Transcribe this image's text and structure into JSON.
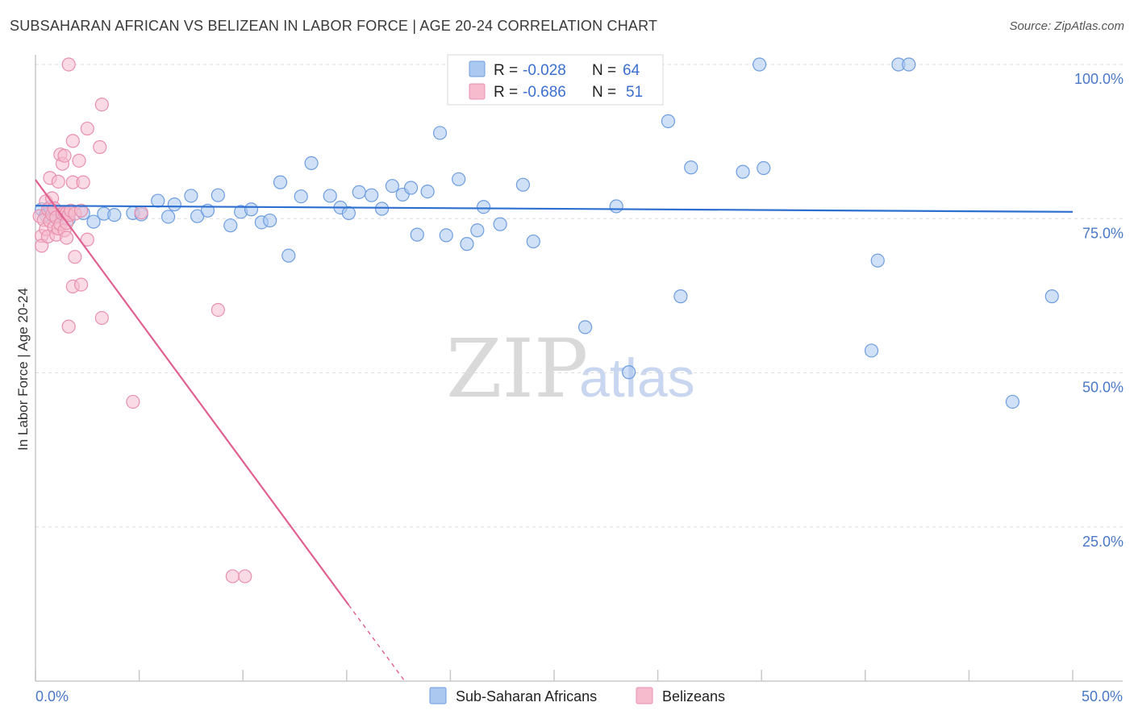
{
  "title": "SUBSAHARAN AFRICAN VS BELIZEAN IN LABOR FORCE | AGE 20-24 CORRELATION CHART",
  "source": "Source: ZipAtlas.com",
  "watermark": {
    "zip": "ZIP",
    "atlas": "atlas"
  },
  "colors": {
    "blue_fill": "#aac8f0",
    "blue_stroke": "#6d9de0",
    "blue_line": "#2d6fd0",
    "pink_fill": "#f6bccd",
    "pink_stroke": "#e890ad",
    "pink_line": "#e0608f",
    "axis_text": "#4a78c8",
    "grid": "#dddddd"
  },
  "legend": {
    "rows": [
      {
        "r_label": "R = ",
        "r_value": "-0.028",
        "n_label": "N = ",
        "n_value": "64"
      },
      {
        "r_label": "R = ",
        "r_value": "-0.686",
        "n_label": "N = ",
        "n_value": "51"
      }
    ]
  },
  "chart_data": {
    "type": "scatter",
    "title": "SUBSAHARAN AFRICAN VS BELIZEAN IN LABOR FORCE | AGE 20-24 CORRELATION CHART",
    "xlabel": "",
    "ylabel": "In Labor Force | Age 20-24",
    "xlim": [
      0,
      50
    ],
    "ylim": [
      0,
      102
    ],
    "x_tick_labels": [
      "0.0%",
      "50.0%"
    ],
    "y_ticks": [
      25,
      50,
      75,
      100
    ],
    "y_tick_labels": [
      "25.0%",
      "50.0%",
      "75.0%",
      "100.0%"
    ],
    "grid": true,
    "legend_position": "top-center",
    "series": [
      {
        "name": "Sub-Saharan Africans",
        "color": "blue",
        "R": -0.028,
        "N": 64,
        "trend": {
          "x": [
            0,
            50
          ],
          "y": [
            77.1,
            76.1
          ]
        },
        "points": [
          [
            0.3,
            76.5
          ],
          [
            0.5,
            75.6
          ],
          [
            0.7,
            76.8
          ],
          [
            0.9,
            75.3
          ],
          [
            1.1,
            76.2
          ],
          [
            1.3,
            75.8
          ],
          [
            1.6,
            74.9
          ],
          [
            2.3,
            75.9
          ],
          [
            2.8,
            74.5
          ],
          [
            3.3,
            75.8
          ],
          [
            3.8,
            75.6
          ],
          [
            4.7,
            75.9
          ],
          [
            5.1,
            75.7
          ],
          [
            5.9,
            77.9
          ],
          [
            6.4,
            75.3
          ],
          [
            6.7,
            77.3
          ],
          [
            7.5,
            78.7
          ],
          [
            7.8,
            75.4
          ],
          [
            8.3,
            76.3
          ],
          [
            8.8,
            78.8
          ],
          [
            9.4,
            73.9
          ],
          [
            9.9,
            76.1
          ],
          [
            10.4,
            76.5
          ],
          [
            10.9,
            74.4
          ],
          [
            11.3,
            74.7
          ],
          [
            11.8,
            80.9
          ],
          [
            12.2,
            69.0
          ],
          [
            12.8,
            78.6
          ],
          [
            13.3,
            84.0
          ],
          [
            14.2,
            78.7
          ],
          [
            14.7,
            76.8
          ],
          [
            15.1,
            75.9
          ],
          [
            15.6,
            79.3
          ],
          [
            16.2,
            78.8
          ],
          [
            16.7,
            76.6
          ],
          [
            17.2,
            80.3
          ],
          [
            17.7,
            78.9
          ],
          [
            18.1,
            80.0
          ],
          [
            18.4,
            72.4
          ],
          [
            18.9,
            79.4
          ],
          [
            19.5,
            88.9
          ],
          [
            19.8,
            72.3
          ],
          [
            20.4,
            81.4
          ],
          [
            20.8,
            70.9
          ],
          [
            21.3,
            73.1
          ],
          [
            21.6,
            76.9
          ],
          [
            22.4,
            74.1
          ],
          [
            23.5,
            80.5
          ],
          [
            24.0,
            71.3
          ],
          [
            26.5,
            57.4
          ],
          [
            28.0,
            77.0
          ],
          [
            28.6,
            50.1
          ],
          [
            30.5,
            90.8
          ],
          [
            31.1,
            62.4
          ],
          [
            31.6,
            83.3
          ],
          [
            34.1,
            82.6
          ],
          [
            34.9,
            100.0
          ],
          [
            35.1,
            83.2
          ],
          [
            40.3,
            53.6
          ],
          [
            40.6,
            68.2
          ],
          [
            41.6,
            100.0
          ],
          [
            42.1,
            100.0
          ],
          [
            47.1,
            45.3
          ],
          [
            49.0,
            62.4
          ]
        ]
      },
      {
        "name": "Belizeans",
        "color": "pink",
        "R": -0.686,
        "N": 51,
        "trend": {
          "x": [
            0.0,
            17.8
          ],
          "y": [
            81.3,
            0.0
          ],
          "solid_until_x": 15.1
        },
        "points": [
          [
            0.2,
            75.4
          ],
          [
            0.3,
            72.2
          ],
          [
            0.3,
            70.6
          ],
          [
            0.4,
            74.8
          ],
          [
            0.5,
            77.8
          ],
          [
            0.5,
            73.3
          ],
          [
            0.6,
            72.1
          ],
          [
            0.6,
            76.5
          ],
          [
            0.7,
            81.6
          ],
          [
            0.7,
            74.6
          ],
          [
            0.8,
            78.3
          ],
          [
            0.8,
            75.7
          ],
          [
            0.9,
            73.6
          ],
          [
            0.9,
            76.7
          ],
          [
            1.0,
            72.4
          ],
          [
            1.0,
            75.2
          ],
          [
            1.1,
            81.0
          ],
          [
            1.1,
            73.4
          ],
          [
            1.2,
            85.4
          ],
          [
            1.2,
            74.1
          ],
          [
            1.3,
            75.8
          ],
          [
            1.3,
            83.9
          ],
          [
            1.4,
            73.1
          ],
          [
            1.4,
            76.1
          ],
          [
            1.4,
            85.2
          ],
          [
            1.5,
            74.3
          ],
          [
            1.5,
            75.9
          ],
          [
            1.5,
            71.9
          ],
          [
            1.6,
            75.6
          ],
          [
            1.6,
            100.0
          ],
          [
            1.6,
            57.5
          ],
          [
            1.7,
            76.3
          ],
          [
            1.8,
            80.9
          ],
          [
            1.8,
            64.0
          ],
          [
            1.8,
            87.6
          ],
          [
            1.9,
            75.8
          ],
          [
            1.9,
            68.8
          ],
          [
            2.1,
            84.4
          ],
          [
            2.2,
            76.3
          ],
          [
            2.2,
            64.3
          ],
          [
            2.3,
            80.9
          ],
          [
            2.5,
            71.6
          ],
          [
            2.5,
            89.6
          ],
          [
            3.1,
            86.6
          ],
          [
            3.2,
            58.9
          ],
          [
            3.2,
            93.5
          ],
          [
            4.7,
            45.3
          ],
          [
            5.1,
            76.0
          ],
          [
            8.8,
            60.2
          ],
          [
            9.5,
            17.0
          ],
          [
            10.1,
            17.0
          ]
        ]
      }
    ]
  }
}
